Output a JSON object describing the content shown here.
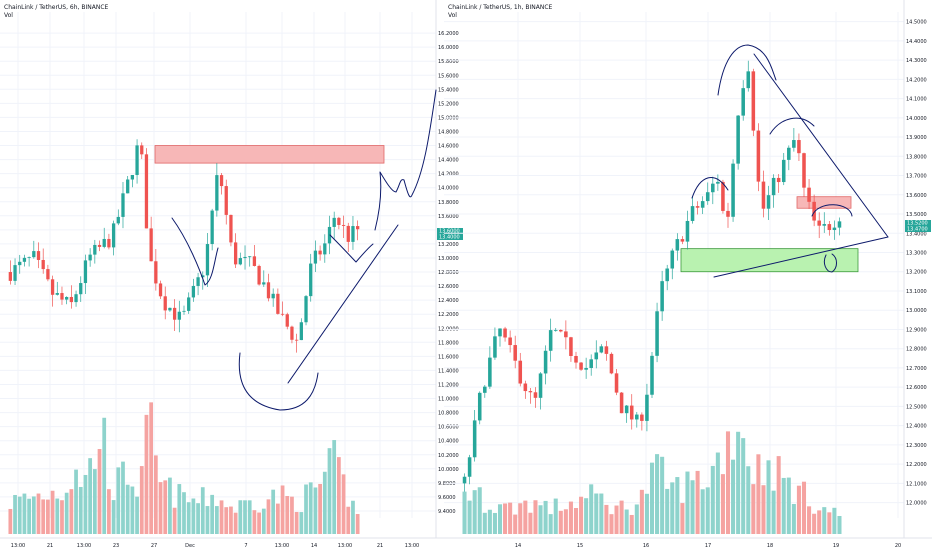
{
  "colors": {
    "up": "#26a69a",
    "down": "#ef5350",
    "up_vol": "#8ed3cc",
    "down_vol": "#f5a3a1",
    "grid": "#f0f3fa",
    "drawing": "#0d1a6b",
    "zone_red": "#f7b7b7",
    "zone_green": "#b9f2b0"
  },
  "chart_data": [
    {
      "type": "candlestick",
      "title": "ChainLink / TetherUS, 6h, BINANCE",
      "subtitle": "Vol",
      "y_ticks": [
        "16.2000",
        "16.0000",
        "15.8000",
        "15.6000",
        "15.4000",
        "15.2000",
        "15.0000",
        "14.8000",
        "14.6000",
        "14.4000",
        "14.2000",
        "14.0000",
        "13.8000",
        "13.6000",
        "13.4000",
        "13.2000",
        "13.0000",
        "12.8000",
        "12.6000",
        "12.4000",
        "12.2000",
        "12.0000",
        "11.8000",
        "11.6000",
        "11.4000",
        "11.2000",
        "11.0000",
        "10.8000",
        "10.6000",
        "10.4000",
        "10.2000",
        "10.0000",
        "9.8000",
        "9.6000",
        "9.4000"
      ],
      "x_ticks": [
        "13:00",
        "21",
        "13:00",
        "23",
        "27",
        "Dec",
        "7",
        "13:00",
        "14",
        "13:00",
        "21",
        "13:00"
      ],
      "ylim": [
        9.3,
        16.5
      ],
      "last_price": "13.4000",
      "last_price_top": "13.6000",
      "resistance_zone": [
        14.35,
        14.6
      ],
      "price_path": [
        [
          0,
          12.8
        ],
        [
          5,
          13.0
        ],
        [
          9,
          12.5
        ],
        [
          13,
          12.3
        ],
        [
          17,
          13.0
        ],
        [
          22,
          13.3
        ],
        [
          26,
          14.2
        ],
        [
          28,
          14.7
        ],
        [
          30,
          13.0
        ],
        [
          33,
          12.4
        ],
        [
          37,
          12.1
        ],
        [
          42,
          12.9
        ],
        [
          45,
          14.3
        ],
        [
          48,
          13.0
        ],
        [
          52,
          12.9
        ],
        [
          55,
          12.6
        ],
        [
          58,
          12.2
        ],
        [
          62,
          11.8
        ],
        [
          65,
          12.9
        ],
        [
          68,
          13.2
        ],
        [
          70,
          13.6
        ],
        [
          73,
          13.3
        ],
        [
          75,
          13.4
        ]
      ],
      "volume_path": [
        [
          0,
          0.25
        ],
        [
          6,
          0.3
        ],
        [
          12,
          0.35
        ],
        [
          14,
          0.55
        ],
        [
          16,
          0.4
        ],
        [
          20,
          0.8
        ],
        [
          22,
          0.35
        ],
        [
          26,
          0.5
        ],
        [
          28,
          0.3
        ],
        [
          30,
          0.9
        ],
        [
          32,
          0.4
        ],
        [
          36,
          0.3
        ],
        [
          40,
          0.25
        ],
        [
          44,
          0.3
        ],
        [
          48,
          0.2
        ],
        [
          52,
          0.25
        ],
        [
          58,
          0.3
        ],
        [
          62,
          0.25
        ],
        [
          66,
          0.35
        ],
        [
          70,
          0.55
        ],
        [
          73,
          0.3
        ],
        [
          75,
          0.15
        ]
      ]
    },
    {
      "type": "candlestick",
      "title": "ChainLink / TetherUS, 1h, BINANCE",
      "subtitle": "Vol",
      "y_ticks": [
        "14.5000",
        "14.4000",
        "14.3000",
        "14.2000",
        "14.1000",
        "14.0000",
        "13.9000",
        "13.8000",
        "13.7000",
        "13.6000",
        "13.5000",
        "13.4000",
        "13.3000",
        "13.2000",
        "13.1000",
        "13.0000",
        "12.9000",
        "12.8000",
        "12.7000",
        "12.6000",
        "12.5000",
        "12.4000",
        "12.3000",
        "12.2000",
        "12.1000",
        "12.0000"
      ],
      "x_ticks": [
        "14",
        "15",
        "16",
        "17",
        "18",
        "19",
        "20"
      ],
      "ylim": [
        11.92,
        14.55
      ],
      "last_price": "13.4700",
      "last_price_top": "13.5200",
      "resistance_zone": [
        13.53,
        13.59
      ],
      "support_zone": [
        13.2,
        13.32
      ],
      "price_path": [
        [
          0,
          12.1
        ],
        [
          4,
          12.6
        ],
        [
          8,
          12.9
        ],
        [
          12,
          12.7
        ],
        [
          16,
          12.5
        ],
        [
          20,
          12.9
        ],
        [
          24,
          12.8
        ],
        [
          28,
          12.7
        ],
        [
          32,
          12.8
        ],
        [
          36,
          12.5
        ],
        [
          40,
          12.4
        ],
        [
          42,
          12.6
        ],
        [
          45,
          13.1
        ],
        [
          48,
          13.3
        ],
        [
          52,
          13.5
        ],
        [
          56,
          13.6
        ],
        [
          58,
          13.7
        ],
        [
          60,
          13.4
        ],
        [
          63,
          14.1
        ],
        [
          65,
          14.3
        ],
        [
          68,
          13.5
        ],
        [
          72,
          13.7
        ],
        [
          76,
          13.9
        ],
        [
          78,
          13.6
        ],
        [
          81,
          13.4
        ],
        [
          84,
          13.45
        ],
        [
          86,
          13.5
        ]
      ],
      "volume_path": [
        [
          0,
          0.35
        ],
        [
          5,
          0.25
        ],
        [
          10,
          0.2
        ],
        [
          15,
          0.25
        ],
        [
          20,
          0.2
        ],
        [
          25,
          0.25
        ],
        [
          30,
          0.3
        ],
        [
          35,
          0.2
        ],
        [
          40,
          0.25
        ],
        [
          44,
          0.5
        ],
        [
          48,
          0.35
        ],
        [
          52,
          0.4
        ],
        [
          56,
          0.45
        ],
        [
          60,
          0.7
        ],
        [
          63,
          0.9
        ],
        [
          66,
          0.5
        ],
        [
          70,
          0.55
        ],
        [
          74,
          0.4
        ],
        [
          78,
          0.3
        ],
        [
          82,
          0.2
        ],
        [
          86,
          0.15
        ]
      ]
    }
  ]
}
